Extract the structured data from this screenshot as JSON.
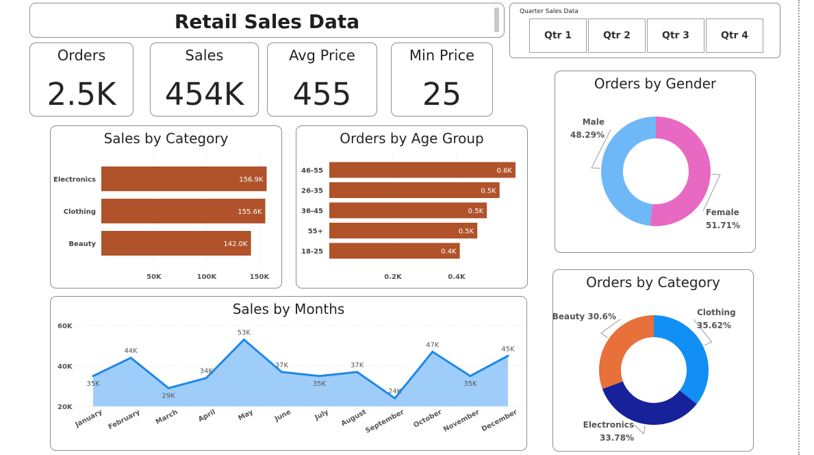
{
  "header": {
    "title": "Retail Sales Data"
  },
  "slicer": {
    "title": "Quarter Sales Data",
    "options": [
      "Qtr 1",
      "Qtr 2",
      "Qtr 3",
      "Qtr 4"
    ]
  },
  "kpis": [
    {
      "label": "Orders",
      "value": "2.5K"
    },
    {
      "label": "Sales",
      "value": "454K"
    },
    {
      "label": "Avg Price",
      "value": "455"
    },
    {
      "label": "Min Price",
      "value": "25"
    }
  ],
  "colors": {
    "bar": "#b0522a",
    "area_fill": "#9fcdf9",
    "line": "#1d87e8",
    "male": "#6fb8f7",
    "female": "#e869c2",
    "clothing": "#128ff5",
    "electronics": "#17229a",
    "beauty": "#e8703b"
  },
  "charts": {
    "sales_by_category": {
      "title": "Sales by Category",
      "chart_data": {
        "type": "bar",
        "orientation": "horizontal",
        "categories": [
          "Electronics",
          "Clothing",
          "Beauty"
        ],
        "values": [
          156900,
          155600,
          142000
        ],
        "data_labels": [
          "156.9K",
          "155.6K",
          "142.0K"
        ],
        "x_ticks": [
          50000,
          100000,
          150000
        ],
        "x_tick_labels": [
          "50K",
          "100K",
          "150K"
        ],
        "xlim": [
          0,
          165000
        ]
      }
    },
    "orders_by_age_group": {
      "title": "Orders by Age Group",
      "chart_data": {
        "type": "bar",
        "orientation": "horizontal",
        "categories": [
          "46-55",
          "26-35",
          "36-45",
          "55+",
          "18-25"
        ],
        "values": [
          585,
          535,
          495,
          465,
          410
        ],
        "data_labels": [
          "0.6K",
          "0.5K",
          "0.5K",
          "0.5K",
          "0.4K"
        ],
        "x_ticks": [
          200,
          400
        ],
        "x_tick_labels": [
          "0.2K",
          "0.4K"
        ],
        "xlim": [
          0,
          585
        ]
      }
    },
    "sales_by_months": {
      "title": "Sales by Months",
      "chart_data": {
        "type": "area",
        "categories": [
          "January",
          "February",
          "March",
          "April",
          "May",
          "June",
          "July",
          "August",
          "September",
          "October",
          "November",
          "December"
        ],
        "values": [
          35000,
          44000,
          29000,
          34000,
          53000,
          37000,
          35000,
          37000,
          24000,
          47000,
          35000,
          45000
        ],
        "data_labels": [
          "35K",
          "44K",
          "29K",
          "34K",
          "53K",
          "37K",
          "35K",
          "37K",
          "24K",
          "47K",
          "35K",
          "45K"
        ],
        "y_ticks": [
          20000,
          40000,
          60000
        ],
        "y_tick_labels": [
          "20K",
          "40K",
          "60K"
        ],
        "ylim": [
          20000,
          60000
        ]
      }
    },
    "orders_by_gender": {
      "title": "Orders by Gender",
      "chart_data": {
        "type": "pie",
        "donut": true,
        "slices": [
          {
            "label": "Female",
            "value": 51.71,
            "display": "51.71%"
          },
          {
            "label": "Male",
            "value": 48.29,
            "display": "48.29%"
          }
        ]
      }
    },
    "orders_by_category": {
      "title": "Orders by Category",
      "chart_data": {
        "type": "pie",
        "donut": true,
        "slices": [
          {
            "label": "Clothing",
            "value": 35.62,
            "display": "35.62%"
          },
          {
            "label": "Electronics",
            "value": 33.78,
            "display": "33.78%"
          },
          {
            "label": "Beauty",
            "value": 30.6,
            "display": "30.6%"
          }
        ]
      }
    }
  }
}
